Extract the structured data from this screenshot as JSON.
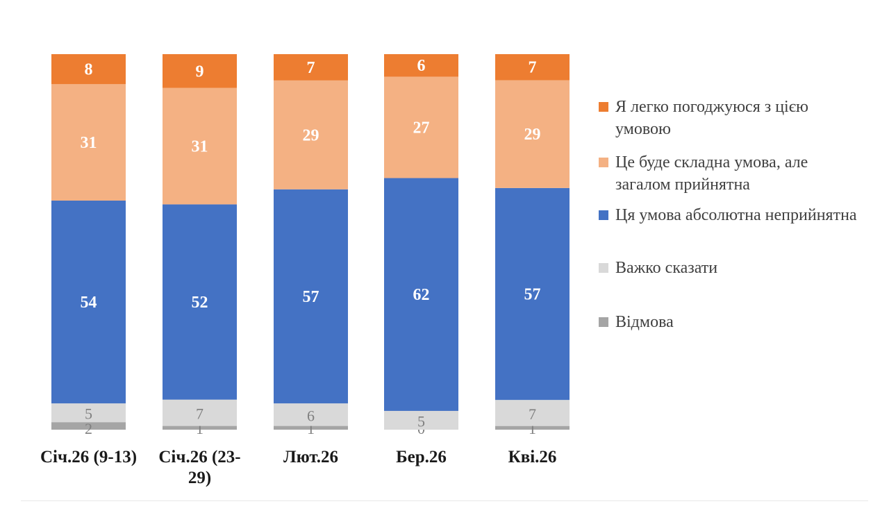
{
  "chart_data": {
    "type": "bar",
    "stacked": true,
    "categories": [
      "Січ.26 (9-13)",
      "Січ.26 (23-29)",
      "Лют.26",
      "Бер.26",
      "Кві.26"
    ],
    "series": [
      {
        "name": "Відмова",
        "color": "#a5a5a5",
        "values": [
          2,
          1,
          1,
          0,
          1
        ]
      },
      {
        "name": "Важко сказати",
        "color": "#d9d9d9",
        "values": [
          5,
          7,
          6,
          5,
          7
        ]
      },
      {
        "name": "Ця умова абсолютна неприйнятна",
        "color": "#4472c4",
        "values": [
          54,
          52,
          57,
          62,
          57
        ]
      },
      {
        "name": "Це буде складна умова, але загалом прийнятна",
        "color": "#f4b183",
        "values": [
          31,
          31,
          29,
          27,
          29
        ]
      },
      {
        "name": "Я легко погоджуюся з цією умовою",
        "color": "#ed7d31",
        "values": [
          8,
          9,
          7,
          6,
          7
        ]
      }
    ],
    "legend": [
      {
        "name": "Я легко погоджуюся з цією умовою",
        "color": "#ed7d31"
      },
      {
        "name": "Це буде складна умова, але загалом прийнятна",
        "color": "#f4b183"
      },
      {
        "name": "Ця умова абсолютна неприйнятна",
        "color": "#4472c4"
      },
      {
        "name": "Важко сказати",
        "color": "#d9d9d9"
      },
      {
        "name": "Відмова",
        "color": "#a5a5a5"
      }
    ],
    "legend_position": "right",
    "ylim": [
      0,
      100
    ],
    "grid": false,
    "title": "",
    "xlabel": "",
    "ylabel": ""
  }
}
